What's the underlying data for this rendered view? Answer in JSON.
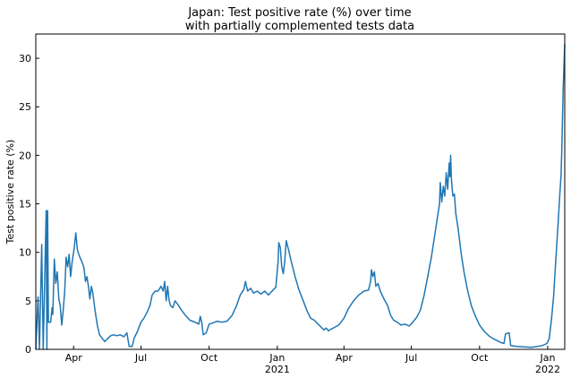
{
  "chart_data": {
    "type": "line",
    "title_lines": [
      "Japan: Test positive rate (%) over time",
      "with partially complemented tests data"
    ],
    "xlabel": "",
    "ylabel": "Test positive rate (%)",
    "x_range": [
      "2020-02-10",
      "2022-01-24"
    ],
    "ylim": [
      0,
      32.5
    ],
    "y_ticks": [
      0,
      5,
      10,
      15,
      20,
      25,
      30
    ],
    "x_ticks": [
      {
        "date": "2020-04-01",
        "label": "Apr",
        "sub": ""
      },
      {
        "date": "2020-07-01",
        "label": "Jul",
        "sub": ""
      },
      {
        "date": "2020-10-01",
        "label": "Oct",
        "sub": ""
      },
      {
        "date": "2021-01-01",
        "label": "Jan",
        "sub": "2021"
      },
      {
        "date": "2021-04-01",
        "label": "Apr",
        "sub": ""
      },
      {
        "date": "2021-07-01",
        "label": "Jul",
        "sub": ""
      },
      {
        "date": "2021-10-01",
        "label": "Oct",
        "sub": ""
      },
      {
        "date": "2022-01-01",
        "label": "Jan",
        "sub": "2022"
      }
    ],
    "grid": false,
    "line_color": "#1f77b4",
    "series": [
      {
        "points": [
          [
            "2020-02-10",
            0.0
          ],
          [
            "2020-02-13",
            5.4
          ],
          [
            "2020-02-15",
            0.0
          ],
          [
            "2020-02-18",
            10.8
          ],
          [
            "2020-02-20",
            0.0
          ],
          [
            "2020-02-24",
            14.3
          ],
          [
            "2020-02-25",
            0.0
          ],
          [
            "2020-02-26",
            14.3
          ],
          [
            "2020-02-27",
            2.8
          ],
          [
            "2020-03-01",
            2.8
          ],
          [
            "2020-03-03",
            4.3
          ],
          [
            "2020-03-04",
            3.6
          ],
          [
            "2020-03-06",
            9.3
          ],
          [
            "2020-03-08",
            6.8
          ],
          [
            "2020-03-10",
            8.0
          ],
          [
            "2020-03-12",
            5.2
          ],
          [
            "2020-03-14",
            4.5
          ],
          [
            "2020-03-16",
            2.5
          ],
          [
            "2020-03-18",
            4.0
          ],
          [
            "2020-03-20",
            6.0
          ],
          [
            "2020-03-22",
            9.5
          ],
          [
            "2020-03-24",
            8.5
          ],
          [
            "2020-03-26",
            9.8
          ],
          [
            "2020-03-28",
            7.5
          ],
          [
            "2020-03-30",
            9.0
          ],
          [
            "2020-04-02",
            10.5
          ],
          [
            "2020-04-04",
            12.0
          ],
          [
            "2020-04-06",
            10.3
          ],
          [
            "2020-04-08",
            9.8
          ],
          [
            "2020-04-10",
            9.4
          ],
          [
            "2020-04-13",
            8.9
          ],
          [
            "2020-04-15",
            8.4
          ],
          [
            "2020-04-17",
            7.0
          ],
          [
            "2020-04-19",
            7.5
          ],
          [
            "2020-04-21",
            6.5
          ],
          [
            "2020-04-23",
            5.2
          ],
          [
            "2020-04-25",
            6.5
          ],
          [
            "2020-04-27",
            5.8
          ],
          [
            "2020-04-30",
            4.0
          ],
          [
            "2020-05-03",
            2.5
          ],
          [
            "2020-05-06",
            1.5
          ],
          [
            "2020-05-10",
            1.1
          ],
          [
            "2020-05-13",
            0.8
          ],
          [
            "2020-05-17",
            1.1
          ],
          [
            "2020-05-21",
            1.4
          ],
          [
            "2020-05-25",
            1.5
          ],
          [
            "2020-05-29",
            1.4
          ],
          [
            "2020-06-03",
            1.5
          ],
          [
            "2020-06-08",
            1.3
          ],
          [
            "2020-06-12",
            1.7
          ],
          [
            "2020-06-15",
            0.3
          ],
          [
            "2020-06-19",
            0.3
          ],
          [
            "2020-06-22",
            1.2
          ],
          [
            "2020-06-26",
            1.8
          ],
          [
            "2020-07-01",
            2.8
          ],
          [
            "2020-07-05",
            3.2
          ],
          [
            "2020-07-09",
            3.8
          ],
          [
            "2020-07-13",
            4.5
          ],
          [
            "2020-07-16",
            5.6
          ],
          [
            "2020-07-20",
            6.0
          ],
          [
            "2020-07-24",
            6.0
          ],
          [
            "2020-07-28",
            6.5
          ],
          [
            "2020-07-31",
            6.0
          ],
          [
            "2020-08-02",
            7.0
          ],
          [
            "2020-08-04",
            5.0
          ],
          [
            "2020-08-06",
            6.5
          ],
          [
            "2020-08-08",
            5.0
          ],
          [
            "2020-08-10",
            4.5
          ],
          [
            "2020-08-13",
            4.3
          ],
          [
            "2020-08-16",
            5.0
          ],
          [
            "2020-08-20",
            4.6
          ],
          [
            "2020-08-25",
            4.0
          ],
          [
            "2020-08-30",
            3.5
          ],
          [
            "2020-09-05",
            3.0
          ],
          [
            "2020-09-12",
            2.8
          ],
          [
            "2020-09-17",
            2.6
          ],
          [
            "2020-09-19",
            3.4
          ],
          [
            "2020-09-21",
            2.8
          ],
          [
            "2020-09-23",
            1.5
          ],
          [
            "2020-09-27",
            1.7
          ],
          [
            "2020-10-01",
            2.6
          ],
          [
            "2020-10-05",
            2.7
          ],
          [
            "2020-10-12",
            2.9
          ],
          [
            "2020-10-18",
            2.8
          ],
          [
            "2020-10-25",
            2.9
          ],
          [
            "2020-11-01",
            3.5
          ],
          [
            "2020-11-07",
            4.5
          ],
          [
            "2020-11-12",
            5.6
          ],
          [
            "2020-11-17",
            6.2
          ],
          [
            "2020-11-19",
            7.0
          ],
          [
            "2020-11-22",
            6.0
          ],
          [
            "2020-11-26",
            6.3
          ],
          [
            "2020-11-30",
            5.8
          ],
          [
            "2020-12-05",
            6.0
          ],
          [
            "2020-12-10",
            5.7
          ],
          [
            "2020-12-15",
            6.0
          ],
          [
            "2020-12-20",
            5.6
          ],
          [
            "2020-12-25",
            6.0
          ],
          [
            "2020-12-30",
            6.4
          ],
          [
            "2021-01-02",
            9.0
          ],
          [
            "2021-01-03",
            11.0
          ],
          [
            "2021-01-05",
            10.5
          ],
          [
            "2021-01-07",
            8.5
          ],
          [
            "2021-01-09",
            7.8
          ],
          [
            "2021-01-11",
            9.0
          ],
          [
            "2021-01-13",
            11.2
          ],
          [
            "2021-01-16",
            10.3
          ],
          [
            "2021-01-20",
            9.0
          ],
          [
            "2021-01-25",
            7.5
          ],
          [
            "2021-01-30",
            6.2
          ],
          [
            "2021-02-05",
            5.0
          ],
          [
            "2021-02-10",
            4.0
          ],
          [
            "2021-02-15",
            3.2
          ],
          [
            "2021-02-20",
            3.0
          ],
          [
            "2021-02-25",
            2.6
          ],
          [
            "2021-03-01",
            2.3
          ],
          [
            "2021-03-05",
            2.0
          ],
          [
            "2021-03-08",
            2.2
          ],
          [
            "2021-03-11",
            1.9
          ],
          [
            "2021-03-15",
            2.1
          ],
          [
            "2021-03-20",
            2.3
          ],
          [
            "2021-03-25",
            2.5
          ],
          [
            "2021-04-01",
            3.2
          ],
          [
            "2021-04-07",
            4.2
          ],
          [
            "2021-04-14",
            5.0
          ],
          [
            "2021-04-21",
            5.6
          ],
          [
            "2021-04-28",
            6.0
          ],
          [
            "2021-05-04",
            6.1
          ],
          [
            "2021-05-07",
            7.0
          ],
          [
            "2021-05-08",
            8.2
          ],
          [
            "2021-05-10",
            7.5
          ],
          [
            "2021-05-12",
            8.0
          ],
          [
            "2021-05-14",
            6.5
          ],
          [
            "2021-05-17",
            6.8
          ],
          [
            "2021-05-20",
            6.0
          ],
          [
            "2021-05-25",
            5.2
          ],
          [
            "2021-05-30",
            4.5
          ],
          [
            "2021-06-03",
            3.5
          ],
          [
            "2021-06-07",
            3.0
          ],
          [
            "2021-06-12",
            2.8
          ],
          [
            "2021-06-17",
            2.5
          ],
          [
            "2021-06-22",
            2.6
          ],
          [
            "2021-06-28",
            2.4
          ],
          [
            "2021-07-03",
            2.8
          ],
          [
            "2021-07-08",
            3.3
          ],
          [
            "2021-07-13",
            4.0
          ],
          [
            "2021-07-18",
            5.5
          ],
          [
            "2021-07-23",
            7.5
          ],
          [
            "2021-07-28",
            9.5
          ],
          [
            "2021-08-01",
            11.5
          ],
          [
            "2021-08-05",
            13.5
          ],
          [
            "2021-08-08",
            15.0
          ],
          [
            "2021-08-09",
            17.2
          ],
          [
            "2021-08-11",
            15.2
          ],
          [
            "2021-08-13",
            16.8
          ],
          [
            "2021-08-15",
            15.8
          ],
          [
            "2021-08-17",
            18.2
          ],
          [
            "2021-08-19",
            16.5
          ],
          [
            "2021-08-21",
            19.2
          ],
          [
            "2021-08-22",
            17.8
          ],
          [
            "2021-08-23",
            20.0
          ],
          [
            "2021-08-24",
            17.5
          ],
          [
            "2021-08-26",
            15.8
          ],
          [
            "2021-08-28",
            16.0
          ],
          [
            "2021-08-30",
            14.0
          ],
          [
            "2021-09-02",
            12.5
          ],
          [
            "2021-09-06",
            10.0
          ],
          [
            "2021-09-10",
            8.0
          ],
          [
            "2021-09-15",
            6.0
          ],
          [
            "2021-09-20",
            4.5
          ],
          [
            "2021-09-25",
            3.5
          ],
          [
            "2021-10-01",
            2.5
          ],
          [
            "2021-10-08",
            1.8
          ],
          [
            "2021-10-15",
            1.3
          ],
          [
            "2021-10-22",
            1.0
          ],
          [
            "2021-10-30",
            0.7
          ],
          [
            "2021-11-03",
            0.6
          ],
          [
            "2021-11-05",
            1.6
          ],
          [
            "2021-11-10",
            1.7
          ],
          [
            "2021-11-12",
            0.4
          ],
          [
            "2021-11-20",
            0.3
          ],
          [
            "2021-11-30",
            0.25
          ],
          [
            "2021-12-10",
            0.2
          ],
          [
            "2021-12-18",
            0.3
          ],
          [
            "2021-12-25",
            0.4
          ],
          [
            "2021-12-31",
            0.6
          ],
          [
            "2022-01-03",
            1.1
          ],
          [
            "2022-01-06",
            3.0
          ],
          [
            "2022-01-09",
            5.5
          ],
          [
            "2022-01-11",
            8.0
          ],
          [
            "2022-01-13",
            10.5
          ],
          [
            "2022-01-15",
            13.0
          ],
          [
            "2022-01-17",
            15.5
          ],
          [
            "2022-01-19",
            18.0
          ],
          [
            "2022-01-20",
            20.5
          ],
          [
            "2022-01-22",
            27.0
          ],
          [
            "2022-01-24",
            31.5
          ]
        ]
      }
    ]
  }
}
